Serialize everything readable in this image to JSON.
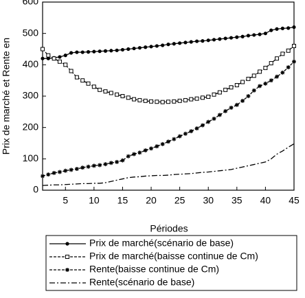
{
  "chart_data": {
    "type": "line",
    "x_label": "Périodes",
    "y_label": "Prix de marché et Rente en",
    "x": [
      1,
      2,
      3,
      4,
      5,
      6,
      7,
      8,
      9,
      10,
      11,
      12,
      13,
      14,
      15,
      16,
      17,
      18,
      19,
      20,
      21,
      22,
      23,
      24,
      25,
      26,
      27,
      28,
      29,
      30,
      31,
      32,
      33,
      34,
      35,
      36,
      37,
      38,
      39,
      40,
      41,
      42,
      43,
      44,
      45
    ],
    "xlim": [
      1,
      45
    ],
    "xticks": [
      5,
      10,
      15,
      20,
      25,
      30,
      35,
      40,
      45
    ],
    "ylim": [
      0,
      600
    ],
    "yticks": [
      0,
      100,
      200,
      300,
      400,
      500,
      600
    ],
    "grid": false,
    "series": [
      {
        "name": "Prix de marché(scénario de base)",
        "color": "#000000",
        "dash": "solid",
        "marker": "circle",
        "values": [
          420,
          420,
          422,
          425,
          430,
          438,
          440,
          440,
          441,
          442,
          443,
          444,
          445,
          446,
          448,
          450,
          452,
          454,
          456,
          458,
          460,
          462,
          465,
          467,
          469,
          471,
          473,
          475,
          476,
          478,
          480,
          482,
          484,
          486,
          488,
          490,
          493,
          495,
          497,
          500,
          510,
          514,
          516,
          517,
          520
        ]
      },
      {
        "name": "Prix de marché(baisse continue de Cm)",
        "color": "#000000",
        "dash": "dashed",
        "marker": "square",
        "values": [
          450,
          430,
          420,
          410,
          400,
          380,
          360,
          350,
          340,
          330,
          320,
          315,
          310,
          305,
          300,
          295,
          290,
          287,
          285,
          283,
          282,
          281,
          282,
          283,
          285,
          287,
          290,
          292,
          295,
          298,
          305,
          312,
          320,
          328,
          335,
          345,
          355,
          365,
          378,
          390,
          405,
          420,
          435,
          445,
          460
        ]
      },
      {
        "name": "Rente(baisse continue de Cm)",
        "color": "#000000",
        "dash": "dashed",
        "marker": "star",
        "values": [
          45,
          50,
          55,
          58,
          62,
          65,
          68,
          72,
          75,
          78,
          80,
          83,
          87,
          90,
          95,
          108,
          115,
          120,
          127,
          133,
          140,
          147,
          155,
          163,
          172,
          180,
          188,
          197,
          207,
          218,
          228,
          240,
          252,
          263,
          272,
          285,
          300,
          318,
          332,
          340,
          350,
          362,
          375,
          392,
          410
        ]
      },
      {
        "name": "Rente(scénario de base)",
        "color": "#000000",
        "dash": "dashdot",
        "marker": "none",
        "values": [
          15,
          16,
          17,
          17,
          18,
          19,
          20,
          21,
          21,
          22,
          22,
          24,
          28,
          32,
          36,
          40,
          42,
          43,
          45,
          46,
          47,
          47,
          48,
          50,
          51,
          52,
          53,
          55,
          57,
          58,
          60,
          62,
          64,
          66,
          70,
          74,
          78,
          82,
          86,
          90,
          100,
          115,
          125,
          137,
          148
        ]
      }
    ]
  }
}
